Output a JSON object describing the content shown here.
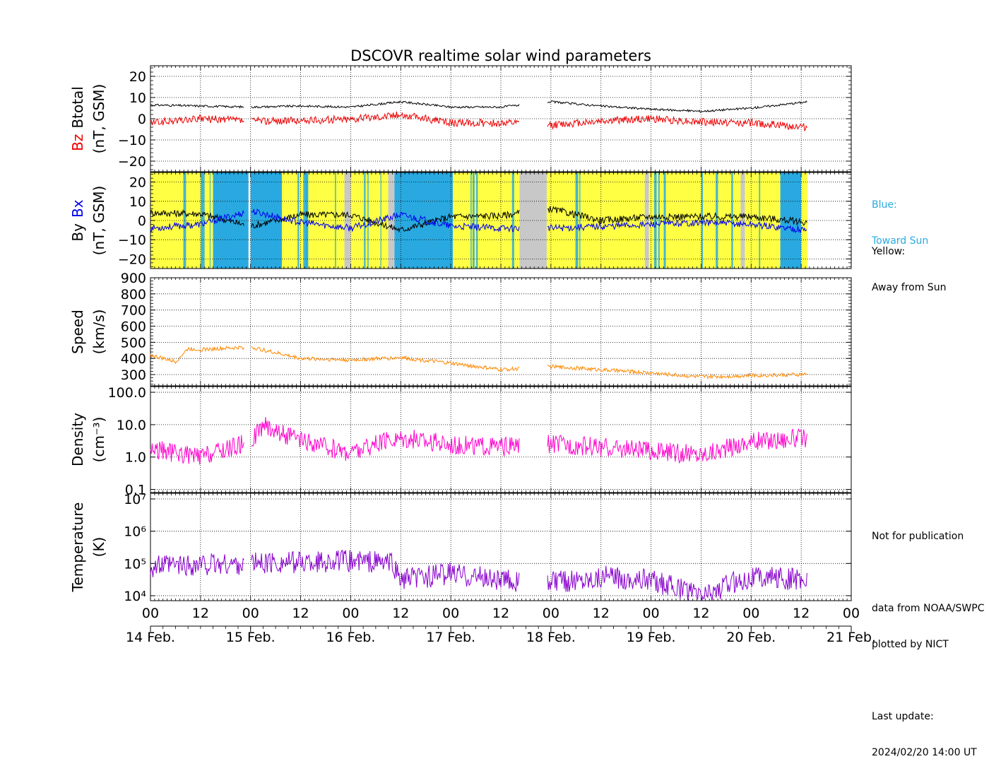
{
  "title": "DSCOVR realtime solar wind parameters",
  "legend_notes": {
    "blue_title": "Blue:",
    "blue_text": "Toward Sun",
    "yellow_title": "Yellow:",
    "yellow_text": "Away from Sun",
    "not_for_pub": "Not for publication",
    "data_from": "data from NOAA/SWPC",
    "plotted_by": "plotted by NICT",
    "last_update_label": "Last update:",
    "last_update_value": "2024/02/20 14:00 UT"
  },
  "colors": {
    "bz": "#ee0000",
    "btotal": "#000000",
    "bx": "#0000ee",
    "by": "#000000",
    "toward": "#29a9e0",
    "away": "#ffff44",
    "gap": "#c8c8c8",
    "speed": "#ff8800",
    "density": "#ff00cc",
    "temperature": "#8800cc",
    "blue_label": "#29a9e0"
  },
  "x_axis": {
    "hour_labels": [
      "00",
      "12",
      "00",
      "12",
      "00",
      "12",
      "00",
      "12",
      "00",
      "12",
      "00",
      "12",
      "00",
      "12",
      "00"
    ],
    "date_labels": [
      "14 Feb.",
      "15 Feb.",
      "16 Feb.",
      "17 Feb.",
      "18 Feb.",
      "19 Feb.",
      "20 Feb.",
      "21 Feb."
    ],
    "start": "2024-02-14T00:00",
    "end": "2024-02-21T00:00",
    "data_end": "2024-02-20T13:30"
  },
  "chart_data": [
    {
      "type": "line",
      "panel": "magnetic_field_total",
      "ylabel_parts": [
        "Bz",
        "Btotal",
        "(nT, GSM)"
      ],
      "ylim": [
        -25,
        25
      ],
      "yticks": [
        "20",
        "10",
        "0",
        "−10",
        "−20"
      ],
      "yticks_values": [
        20,
        10,
        0,
        -10,
        -20
      ],
      "grid": true,
      "series": [
        {
          "name": "Btotal",
          "points": [
            [
              "2024-02-14T00:00",
              6.5
            ],
            [
              "2024-02-14T12:00",
              6.0
            ],
            [
              "2024-02-15T00:00",
              5.5
            ],
            [
              "2024-02-15T12:00",
              6.0
            ],
            [
              "2024-02-16T00:00",
              5.5
            ],
            [
              "2024-02-16T12:00",
              8.0
            ],
            [
              "2024-02-17T00:00",
              5.5
            ],
            [
              "2024-02-17T12:00",
              5.5
            ],
            [
              "2024-02-18T00:00",
              8.0
            ],
            [
              "2024-02-18T12:00",
              6.0
            ],
            [
              "2024-02-19T00:00",
              4.5
            ],
            [
              "2024-02-19T12:00",
              3.5
            ],
            [
              "2024-02-20T00:00",
              5.0
            ],
            [
              "2024-02-20T13:30",
              8.0
            ]
          ]
        },
        {
          "name": "Bz",
          "points": [
            [
              "2024-02-14T00:00",
              -2.0
            ],
            [
              "2024-02-14T12:00",
              0.0
            ],
            [
              "2024-02-15T00:00",
              -1.0
            ],
            [
              "2024-02-15T12:00",
              -1.0
            ],
            [
              "2024-02-16T00:00",
              0.0
            ],
            [
              "2024-02-16T12:00",
              2.0
            ],
            [
              "2024-02-17T00:00",
              -2.0
            ],
            [
              "2024-02-17T12:00",
              -2.0
            ],
            [
              "2024-02-18T00:00",
              -3.0
            ],
            [
              "2024-02-18T12:00",
              -1.0
            ],
            [
              "2024-02-19T00:00",
              0.0
            ],
            [
              "2024-02-19T12:00",
              -1.5
            ],
            [
              "2024-02-20T00:00",
              -2.0
            ],
            [
              "2024-02-20T13:30",
              -4.0
            ]
          ]
        }
      ]
    },
    {
      "type": "line",
      "panel": "magnetic_field_xy",
      "ylabel_parts": [
        "By",
        "Bx",
        "(nT, GSM)"
      ],
      "ylim": [
        -25,
        25
      ],
      "yticks": [
        "20",
        "10",
        "0",
        "−10",
        "−20"
      ],
      "yticks_values": [
        20,
        10,
        0,
        -10,
        -20
      ],
      "grid": true,
      "series": [
        {
          "name": "By",
          "points": [
            [
              "2024-02-14T00:00",
              4.0
            ],
            [
              "2024-02-14T12:00",
              3.5
            ],
            [
              "2024-02-15T00:00",
              -3.0
            ],
            [
              "2024-02-15T12:00",
              3.0
            ],
            [
              "2024-02-16T00:00",
              3.0
            ],
            [
              "2024-02-16T12:00",
              -5.0
            ],
            [
              "2024-02-17T00:00",
              2.0
            ],
            [
              "2024-02-17T12:00",
              2.5
            ],
            [
              "2024-02-18T00:00",
              6.0
            ],
            [
              "2024-02-18T12:00",
              0.0
            ],
            [
              "2024-02-19T00:00",
              2.0
            ],
            [
              "2024-02-19T12:00",
              2.0
            ],
            [
              "2024-02-20T00:00",
              2.0
            ],
            [
              "2024-02-20T13:30",
              -1.0
            ]
          ]
        },
        {
          "name": "Bx",
          "points": [
            [
              "2024-02-14T00:00",
              -4.0
            ],
            [
              "2024-02-14T12:00",
              -2.0
            ],
            [
              "2024-02-15T00:00",
              5.0
            ],
            [
              "2024-02-15T12:00",
              -1.0
            ],
            [
              "2024-02-16T00:00",
              -4.0
            ],
            [
              "2024-02-16T12:00",
              3.0
            ],
            [
              "2024-02-17T00:00",
              -3.0
            ],
            [
              "2024-02-17T12:00",
              -4.0
            ],
            [
              "2024-02-18T00:00",
              -4.0
            ],
            [
              "2024-02-18T12:00",
              -3.0
            ],
            [
              "2024-02-19T00:00",
              -2.0
            ],
            [
              "2024-02-19T12:00",
              -1.0
            ],
            [
              "2024-02-20T00:00",
              -2.0
            ],
            [
              "2024-02-20T13:30",
              -5.0
            ]
          ]
        }
      ],
      "sector_background": [
        {
          "from": "2024-02-14T00:00",
          "to": "2024-02-14T15:00",
          "sector": "away"
        },
        {
          "from": "2024-02-14T15:00",
          "to": "2024-02-14T23:30",
          "sector": "toward"
        },
        {
          "from": "2024-02-15T00:00",
          "to": "2024-02-15T07:30",
          "sector": "toward"
        },
        {
          "from": "2024-02-15T07:30",
          "to": "2024-02-15T22:30",
          "sector": "away"
        },
        {
          "from": "2024-02-15T22:30",
          "to": "2024-02-16T00:00",
          "sector": "gap"
        },
        {
          "from": "2024-02-16T00:00",
          "to": "2024-02-16T09:00",
          "sector": "away"
        },
        {
          "from": "2024-02-16T09:00",
          "to": "2024-02-16T10:30",
          "sector": "gap"
        },
        {
          "from": "2024-02-16T10:30",
          "to": "2024-02-17T00:30",
          "sector": "toward"
        },
        {
          "from": "2024-02-17T00:30",
          "to": "2024-02-17T16:30",
          "sector": "away"
        },
        {
          "from": "2024-02-17T16:30",
          "to": "2024-02-17T23:00",
          "sector": "gap"
        },
        {
          "from": "2024-02-17T23:00",
          "to": "2024-02-18T22:30",
          "sector": "away"
        },
        {
          "from": "2024-02-18T22:30",
          "to": "2024-02-18T23:30",
          "sector": "gap"
        },
        {
          "from": "2024-02-18T23:30",
          "to": "2024-02-19T21:30",
          "sector": "away"
        },
        {
          "from": "2024-02-19T21:30",
          "to": "2024-02-19T22:30",
          "sector": "gap"
        },
        {
          "from": "2024-02-19T22:30",
          "to": "2024-02-20T07:00",
          "sector": "away"
        },
        {
          "from": "2024-02-20T07:00",
          "to": "2024-02-20T12:00",
          "sector": "toward"
        },
        {
          "from": "2024-02-20T12:00",
          "to": "2024-02-20T13:30",
          "sector": "away"
        }
      ]
    },
    {
      "type": "line",
      "panel": "speed",
      "ylabel_parts": [
        "Speed",
        "(km/s)"
      ],
      "ylim": [
        230,
        900
      ],
      "yticks": [
        "900",
        "800",
        "700",
        "600",
        "500",
        "400",
        "300"
      ],
      "yticks_values": [
        900,
        800,
        700,
        600,
        500,
        400,
        300
      ],
      "grid": true,
      "series": [
        {
          "name": "Speed",
          "points": [
            [
              "2024-02-14T00:00",
              420
            ],
            [
              "2024-02-14T06:00",
              380
            ],
            [
              "2024-02-14T09:00",
              460
            ],
            [
              "2024-02-14T12:00",
              455
            ],
            [
              "2024-02-15T00:00",
              470
            ],
            [
              "2024-02-15T12:00",
              400
            ],
            [
              "2024-02-16T00:00",
              390
            ],
            [
              "2024-02-16T12:00",
              405
            ],
            [
              "2024-02-17T00:00",
              370
            ],
            [
              "2024-02-17T12:00",
              330
            ],
            [
              "2024-02-18T00:00",
              350
            ],
            [
              "2024-02-18T12:00",
              330
            ],
            [
              "2024-02-19T00:00",
              310
            ],
            [
              "2024-02-19T12:00",
              285
            ],
            [
              "2024-02-20T00:00",
              295
            ],
            [
              "2024-02-20T13:30",
              300
            ]
          ]
        }
      ]
    },
    {
      "type": "line",
      "panel": "density",
      "ylabel_parts": [
        "Density",
        "(cm⁻³)"
      ],
      "yscale": "log",
      "ylim": [
        0.08,
        150
      ],
      "yticks": [
        "100.0",
        "10.0",
        "1.0",
        "0.1"
      ],
      "yticks_values": [
        100,
        10,
        1,
        0.1
      ],
      "grid": true,
      "series": [
        {
          "name": "Density",
          "points": [
            [
              "2024-02-14T00:00",
              1.8
            ],
            [
              "2024-02-14T12:00",
              1.0
            ],
            [
              "2024-02-15T00:00",
              3.0
            ],
            [
              "2024-02-15T03:00",
              10.0
            ],
            [
              "2024-02-15T12:00",
              3.0
            ],
            [
              "2024-02-16T00:00",
              1.4
            ],
            [
              "2024-02-16T12:00",
              4.0
            ],
            [
              "2024-02-17T00:00",
              2.5
            ],
            [
              "2024-02-17T12:00",
              2.0
            ],
            [
              "2024-02-18T00:00",
              2.5
            ],
            [
              "2024-02-18T12:00",
              2.0
            ],
            [
              "2024-02-19T00:00",
              1.5
            ],
            [
              "2024-02-19T12:00",
              1.2
            ],
            [
              "2024-02-20T00:00",
              3.0
            ],
            [
              "2024-02-20T13:30",
              4.0
            ]
          ]
        }
      ]
    },
    {
      "type": "line",
      "panel": "temperature",
      "ylabel_parts": [
        "Temperature",
        "(K)"
      ],
      "yscale": "log",
      "ylim": [
        7000,
        15000000
      ],
      "yticks": [
        "10⁷",
        "10⁶",
        "10⁵",
        "10⁴"
      ],
      "yticks_values": [
        10000000,
        1000000,
        100000,
        10000
      ],
      "grid": true,
      "series": [
        {
          "name": "Temperature",
          "points": [
            [
              "2024-02-14T00:00",
              80000
            ],
            [
              "2024-02-14T12:00",
              90000
            ],
            [
              "2024-02-15T00:00",
              100000
            ],
            [
              "2024-02-15T12:00",
              110000
            ],
            [
              "2024-02-16T00:00",
              120000
            ],
            [
              "2024-02-16T10:00",
              100000
            ],
            [
              "2024-02-16T12:00",
              30000
            ],
            [
              "2024-02-17T00:00",
              50000
            ],
            [
              "2024-02-17T12:00",
              30000
            ],
            [
              "2024-02-18T00:00",
              25000
            ],
            [
              "2024-02-18T12:00",
              40000
            ],
            [
              "2024-02-19T00:00",
              30000
            ],
            [
              "2024-02-19T12:00",
              10000
            ],
            [
              "2024-02-20T00:00",
              40000
            ],
            [
              "2024-02-20T13:30",
              30000
            ]
          ]
        }
      ]
    }
  ]
}
